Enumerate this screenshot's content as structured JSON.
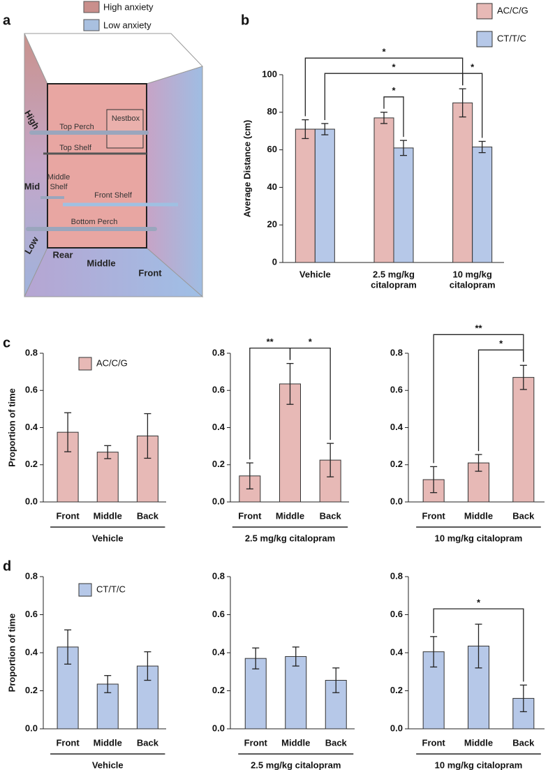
{
  "panel_labels": [
    "a",
    "b",
    "c",
    "d"
  ],
  "diagram": {
    "legend": [
      {
        "name": "High anxiety",
        "color": "#c98f8c"
      },
      {
        "name": "Low anxiety",
        "color": "#a9c0e0"
      }
    ],
    "labels": {
      "high": "High",
      "mid": "Mid",
      "low": "Low",
      "top_perch": "Top Perch",
      "nestbox": "Nestbox",
      "top_shelf": "Top Shelf",
      "middle_shelf": [
        "Middle",
        "Shelf"
      ],
      "front_shelf": "Front Shelf",
      "bottom_perch": "Bottom Perch",
      "rear": "Rear",
      "middle": "Middle",
      "front": "Front"
    }
  },
  "chart_data": [
    {
      "type": "bar",
      "y_label": "Average Distance (cm)",
      "categories": [
        [
          "Vehicle"
        ],
        [
          "2.5 mg/kg",
          "citalopram"
        ],
        [
          "10 mg/kg",
          "citalopram"
        ]
      ],
      "series": [
        {
          "name": "AC/C/G",
          "color": "#e7b9b6",
          "values": [
            71,
            77,
            85
          ],
          "errors": [
            5,
            3,
            7.5
          ]
        },
        {
          "name": "CT/T/C",
          "color": "#b6c8e8",
          "values": [
            71,
            61,
            61.5
          ],
          "errors": [
            3,
            4,
            3
          ]
        }
      ],
      "ylim": [
        0,
        100
      ],
      "yticks": [
        0,
        20,
        40,
        60,
        80,
        100
      ],
      "annotations": [
        {
          "text": "*",
          "from": {
            "series": 0,
            "category": 1
          },
          "to": {
            "series": 1,
            "category": 1
          }
        },
        {
          "text": "*",
          "from": {
            "series": 0,
            "category": 2
          },
          "to": {
            "series": 1,
            "category": 2
          }
        },
        {
          "text": "*",
          "from": {
            "series": 1,
            "category": 0
          },
          "to": {
            "series": 0,
            "category": 2
          }
        },
        {
          "text": "*",
          "from": {
            "series": 0,
            "category": 0
          },
          "to": {
            "series": 0,
            "category": 2
          }
        }
      ]
    },
    {
      "type": "bar",
      "y_label": "Proportion of time",
      "x_label": "Vehicle",
      "categories": [
        "Front",
        "Middle",
        "Back"
      ],
      "series": [
        {
          "name": "AC/C/G",
          "color": "#e7b9b6",
          "values": [
            0.375,
            0.268,
            0.355
          ],
          "errors": [
            0.105,
            0.035,
            0.12
          ]
        }
      ],
      "ylim": [
        0,
        0.8
      ],
      "yticks": [
        {
          "value": 0,
          "label": "0.0"
        },
        0.2,
        0.4,
        0.6,
        0.8
      ],
      "annotations": []
    },
    {
      "type": "bar",
      "x_label": "2.5 mg/kg citalopram",
      "categories": [
        "Front",
        "Middle",
        "Back"
      ],
      "series": [
        {
          "color": "#e7b9b6",
          "values": [
            0.14,
            0.635,
            0.225
          ],
          "errors": [
            0.07,
            0.11,
            0.09
          ]
        }
      ],
      "ylim": [
        0,
        0.8
      ],
      "yticks": [
        {
          "value": 0,
          "label": "0.0"
        },
        0.2,
        0.4,
        0.6,
        0.8
      ],
      "annotations": [
        {
          "text": "**",
          "from": {
            "series": 0,
            "category": 0
          },
          "to": {
            "series": 0,
            "category": 1
          }
        },
        {
          "text": "*",
          "from": {
            "series": 0,
            "category": 1
          },
          "to": {
            "series": 0,
            "category": 2
          }
        }
      ]
    },
    {
      "type": "bar",
      "x_label": "10 mg/kg citalopram",
      "categories": [
        "Front",
        "Middle",
        "Back"
      ],
      "series": [
        {
          "color": "#e7b9b6",
          "values": [
            0.12,
            0.21,
            0.67
          ],
          "errors": [
            0.07,
            0.045,
            0.065
          ]
        }
      ],
      "ylim": [
        0,
        0.8
      ],
      "yticks": [
        {
          "value": 0,
          "label": "0.0"
        },
        0.2,
        0.4,
        0.6,
        0.8
      ],
      "annotations": [
        {
          "text": "*",
          "from": {
            "series": 0,
            "category": 1
          },
          "to": {
            "series": 0,
            "category": 2
          }
        },
        {
          "text": "**",
          "from": {
            "series": 0,
            "category": 0
          },
          "to": {
            "series": 0,
            "category": 2
          }
        }
      ]
    },
    {
      "type": "bar",
      "y_label": "Proportion of time",
      "x_label": "Vehicle",
      "categories": [
        "Front",
        "Middle",
        "Back"
      ],
      "series": [
        {
          "name": "CT/T/C",
          "color": "#b6c8e8",
          "values": [
            0.43,
            0.235,
            0.33
          ],
          "errors": [
            0.09,
            0.045,
            0.075
          ]
        }
      ],
      "ylim": [
        0,
        0.8
      ],
      "yticks": [
        {
          "value": 0,
          "label": "0.0"
        },
        0.2,
        0.4,
        0.6,
        0.8
      ],
      "annotations": []
    },
    {
      "type": "bar",
      "x_label": "2.5 mg/kg citalopram",
      "categories": [
        "Front",
        "Middle",
        "Back"
      ],
      "series": [
        {
          "color": "#b6c8e8",
          "values": [
            0.37,
            0.38,
            0.255
          ],
          "errors": [
            0.055,
            0.05,
            0.065
          ]
        }
      ],
      "ylim": [
        0,
        0.8
      ],
      "yticks": [
        {
          "value": 0,
          "label": "0.0"
        },
        0.2,
        0.4,
        0.6,
        0.8
      ],
      "annotations": []
    },
    {
      "type": "bar",
      "x_label": "10 mg/kg citalopram",
      "categories": [
        "Front",
        "Middle",
        "Back"
      ],
      "series": [
        {
          "color": "#b6c8e8",
          "values": [
            0.405,
            0.435,
            0.16
          ],
          "errors": [
            0.08,
            0.115,
            0.07
          ]
        }
      ],
      "ylim": [
        0,
        0.8
      ],
      "yticks": [
        {
          "value": 0,
          "label": "0.0"
        },
        0.2,
        0.4,
        0.6,
        0.8
      ],
      "annotations": [
        {
          "text": "*",
          "from": {
            "series": 0,
            "category": 0
          },
          "to": {
            "series": 0,
            "category": 2
          }
        }
      ]
    }
  ]
}
